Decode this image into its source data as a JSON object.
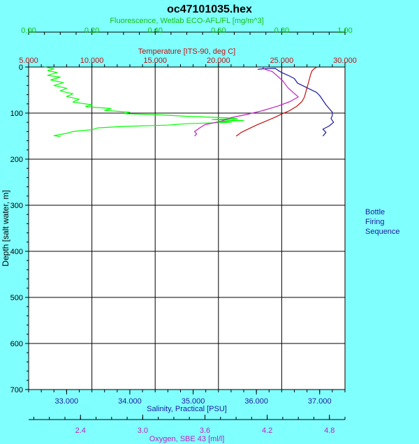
{
  "chart_data": {
    "type": "line",
    "title": "oc47101035.hex",
    "y_axis": {
      "label": "Depth [salt water, m]",
      "range": [
        0,
        700
      ],
      "ticks": [
        0,
        100,
        200,
        300,
        400,
        500,
        600,
        700
      ],
      "tick_labels": [
        "0",
        "100",
        "200",
        "300",
        "400",
        "500",
        "600",
        "700"
      ],
      "inverted": true
    },
    "x_axes": [
      {
        "id": "fluorescence",
        "label": "Fluorescence, Wetlab ECO-AFL/FL [mg/m^3]",
        "position": "top",
        "color": "#10c010",
        "range": [
          0,
          1
        ],
        "ticks": [
          0,
          0.2,
          0.4,
          0.6,
          0.8,
          1.0
        ],
        "tick_labels": [
          "0.00",
          "0.20",
          "0.40",
          "0.60",
          "0.80",
          "1.00"
        ]
      },
      {
        "id": "temperature",
        "label": "Temperature [ITS-90, deg C]",
        "position": "top",
        "color": "#c01010",
        "range": [
          5,
          30
        ],
        "ticks": [
          5,
          10,
          15,
          20,
          25,
          30
        ],
        "tick_labels": [
          "5.000",
          "10.000",
          "15.000",
          "20.000",
          "25.000",
          "30.000"
        ]
      },
      {
        "id": "salinity",
        "label": "Salinity, Practical [PSU]",
        "position": "bottom",
        "color": "#1a1aa0",
        "range": [
          32.4,
          37.4
        ],
        "ticks": [
          33,
          34,
          35,
          36,
          37
        ],
        "tick_labels": [
          "33.000",
          "34.000",
          "35.000",
          "36.000",
          "37.000"
        ]
      },
      {
        "id": "oxygen",
        "label": "Oxygen, SBE 43 [ml/l]",
        "position": "bottom",
        "color": "#c020c0",
        "range": [
          1.9,
          4.95
        ],
        "ticks": [
          2.4,
          3.0,
          3.6,
          4.2,
          4.8
        ],
        "tick_labels": [
          "2.4",
          "3.0",
          "3.6",
          "4.2",
          "4.8"
        ]
      }
    ],
    "grid": true,
    "series": [
      {
        "axis": "fluorescence",
        "color": "#00ff00",
        "points": [
          [
            0.05,
            0
          ],
          [
            0.08,
            4
          ],
          [
            0.06,
            8
          ],
          [
            0.09,
            12
          ],
          [
            0.06,
            18
          ],
          [
            0.1,
            22
          ],
          [
            0.07,
            28
          ],
          [
            0.11,
            34
          ],
          [
            0.08,
            40
          ],
          [
            0.12,
            46
          ],
          [
            0.1,
            52
          ],
          [
            0.14,
            58
          ],
          [
            0.12,
            64
          ],
          [
            0.16,
            70
          ],
          [
            0.14,
            76
          ],
          [
            0.2,
            82
          ],
          [
            0.18,
            86
          ],
          [
            0.26,
            90
          ],
          [
            0.24,
            94
          ],
          [
            0.32,
            98
          ],
          [
            0.3,
            101
          ],
          [
            0.42,
            104
          ],
          [
            0.5,
            107
          ],
          [
            0.62,
            110
          ],
          [
            0.66,
            112
          ],
          [
            0.58,
            114
          ],
          [
            0.68,
            116
          ],
          [
            0.6,
            118
          ],
          [
            0.64,
            120
          ],
          [
            0.5,
            123
          ],
          [
            0.44,
            126
          ],
          [
            0.3,
            129
          ],
          [
            0.22,
            132
          ],
          [
            0.2,
            136
          ],
          [
            0.14,
            140
          ],
          [
            0.12,
            144
          ],
          [
            0.08,
            149
          ],
          [
            0.1,
            151
          ]
        ]
      },
      {
        "axis": "temperature",
        "color": "#c01010",
        "points": [
          [
            27.8,
            0
          ],
          [
            27.6,
            3
          ],
          [
            27.4,
            8
          ],
          [
            27.3,
            15
          ],
          [
            27.2,
            25
          ],
          [
            27.1,
            35
          ],
          [
            27.0,
            45
          ],
          [
            26.9,
            55
          ],
          [
            26.8,
            65
          ],
          [
            26.6,
            75
          ],
          [
            26.2,
            85
          ],
          [
            25.6,
            95
          ],
          [
            25.0,
            102
          ],
          [
            24.4,
            110
          ],
          [
            23.7,
            118
          ],
          [
            23.0,
            126
          ],
          [
            22.4,
            134
          ],
          [
            21.8,
            142
          ],
          [
            21.4,
            150
          ]
        ]
      },
      {
        "axis": "salinity",
        "color": "#1a1aa0",
        "points": [
          [
            36.02,
            5
          ],
          [
            36.1,
            4
          ],
          [
            36.3,
            3
          ],
          [
            36.35,
            8
          ],
          [
            36.4,
            12
          ],
          [
            36.5,
            18
          ],
          [
            36.6,
            25
          ],
          [
            36.65,
            35
          ],
          [
            36.8,
            45
          ],
          [
            36.95,
            55
          ],
          [
            37.0,
            62
          ],
          [
            37.05,
            72
          ],
          [
            37.1,
            82
          ],
          [
            37.15,
            90
          ],
          [
            37.2,
            98
          ],
          [
            37.2,
            105
          ],
          [
            37.18,
            112
          ],
          [
            37.22,
            120
          ],
          [
            37.15,
            128
          ],
          [
            37.05,
            135
          ],
          [
            37.1,
            142
          ],
          [
            37.05,
            150
          ]
        ]
      },
      {
        "axis": "oxygen",
        "color": "#c020c0",
        "points": [
          [
            4.15,
            0
          ],
          [
            4.18,
            5
          ],
          [
            4.25,
            10
          ],
          [
            4.3,
            20
          ],
          [
            4.35,
            30
          ],
          [
            4.4,
            45
          ],
          [
            4.45,
            55
          ],
          [
            4.5,
            65
          ],
          [
            4.42,
            75
          ],
          [
            4.3,
            85
          ],
          [
            4.15,
            95
          ],
          [
            4.0,
            103
          ],
          [
            3.85,
            110
          ],
          [
            3.75,
            118
          ],
          [
            3.6,
            125
          ],
          [
            3.55,
            132
          ],
          [
            3.5,
            140
          ],
          [
            3.52,
            145
          ],
          [
            3.5,
            150
          ]
        ]
      }
    ]
  },
  "legend": {
    "bottle_lines": [
      "Bottle",
      "Firing",
      "Sequence"
    ]
  }
}
